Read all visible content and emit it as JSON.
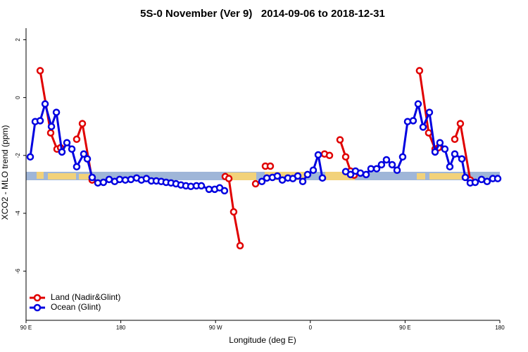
{
  "chart_data": {
    "type": "line",
    "title": "5S-0 November (Ver 9)   2014-09-06 to 2018-12-31",
    "xlabel": "Longitude (deg E)",
    "ylabel": "XCO2 - MLO trend (ppm)",
    "xlim": [
      90,
      540
    ],
    "xticks": [
      {
        "value": 90,
        "label": "90 E"
      },
      180,
      {
        "value": 270,
        "label": "90 W"
      },
      {
        "value": 360,
        "label": "0"
      },
      {
        "value": 450,
        "label": "90 E"
      },
      {
        "value": 540,
        "label": "180"
      }
    ],
    "ylim": [
      -7.7,
      2.4
    ],
    "yticks": [
      -6,
      -4,
      -2,
      0,
      2
    ],
    "legend": "bottom-left",
    "series": [
      {
        "name": "Land (Nadir&Glint)",
        "color": "#e00000",
        "x": [
          103.4,
          113.4,
          119.4,
          122.8,
          null,
          138.1,
          143.5,
          152.8,
          null,
          279.2,
          282.6,
          287.2,
          293.3,
          null,
          308.0,
          null,
          317.3,
          322.0,
          null,
          373.5,
          378.2,
          null,
          388.2,
          393.6,
          398.2,
          401.6,
          null,
          463.7,
          472.4,
          478.5,
          481.8,
          null,
          497.2,
          502.5,
          511.9
        ],
        "values": [
          0.93,
          -1.22,
          -1.78,
          -1.73,
          null,
          -1.44,
          -0.9,
          -2.85,
          null,
          -2.73,
          -2.8,
          -3.95,
          -5.12,
          null,
          -2.98,
          null,
          -2.37,
          -2.37,
          null,
          -1.95,
          -2.0,
          null,
          -1.46,
          -2.05,
          -2.54,
          -2.68,
          null,
          0.93,
          -1.22,
          -1.78,
          -1.73,
          null,
          -1.44,
          -0.9,
          -2.85
        ]
      },
      {
        "name": "Ocean (Glint)",
        "color": "#0000e0",
        "x": [
          94.0,
          98.7,
          103.4,
          108.1,
          114.1,
          118.8,
          124.1,
          128.8,
          133.5,
          138.1,
          144.8,
          148.2,
          152.8,
          158.2,
          163.5,
          168.9,
          174.2,
          178.9,
          184.3,
          189.6,
          195.0,
          199.6,
          204.3,
          209.0,
          213.7,
          218.4,
          223.0,
          227.7,
          232.4,
          237.1,
          241.8,
          246.5,
          251.8,
          256.5,
          263.8,
          269.2,
          273.9,
          278.5,
          null,
          314.0,
          318.7,
          324.0,
          328.7,
          333.4,
          338.7,
          343.4,
          348.1,
          352.8,
          357.4,
          362.8,
          367.5,
          371.5,
          null,
          393.6,
          398.2,
          402.9,
          407.6,
          413.0,
          417.6,
          423.0,
          427.6,
          432.3,
          437.7,
          442.4,
          447.7,
          452.4,
          457.7,
          462.4,
          467.1,
          473.1,
          478.5,
          483.1,
          487.8,
          492.5,
          497.2,
          503.9,
          507.2,
          511.9,
          516.6,
          522.6,
          527.9,
          533.3,
          538.0
        ],
        "values": [
          -2.05,
          -0.83,
          -0.8,
          -0.22,
          -1.0,
          -0.51,
          -1.88,
          -1.56,
          -1.78,
          -2.39,
          -1.95,
          -2.12,
          -2.76,
          -2.95,
          -2.93,
          -2.83,
          -2.9,
          -2.83,
          -2.85,
          -2.83,
          -2.78,
          -2.85,
          -2.8,
          -2.88,
          -2.88,
          -2.9,
          -2.93,
          -2.95,
          -2.98,
          -3.02,
          -3.05,
          -3.07,
          -3.05,
          -3.05,
          -3.17,
          -3.17,
          -3.12,
          -3.22,
          null,
          -2.9,
          -2.78,
          -2.76,
          -2.71,
          -2.85,
          -2.78,
          -2.8,
          -2.71,
          -2.9,
          -2.66,
          -2.51,
          -1.98,
          -2.78,
          null,
          -2.56,
          -2.66,
          -2.54,
          -2.61,
          -2.66,
          -2.46,
          -2.46,
          -2.32,
          -2.15,
          -2.32,
          -2.51,
          -2.05,
          -0.83,
          -0.8,
          -0.22,
          -1.02,
          -0.51,
          -1.88,
          -1.56,
          -1.78,
          -2.39,
          -1.95,
          -2.12,
          -2.76,
          -2.95,
          -2.93,
          -2.83,
          -2.9,
          -2.8,
          -2.8
        ]
      }
    ]
  }
}
